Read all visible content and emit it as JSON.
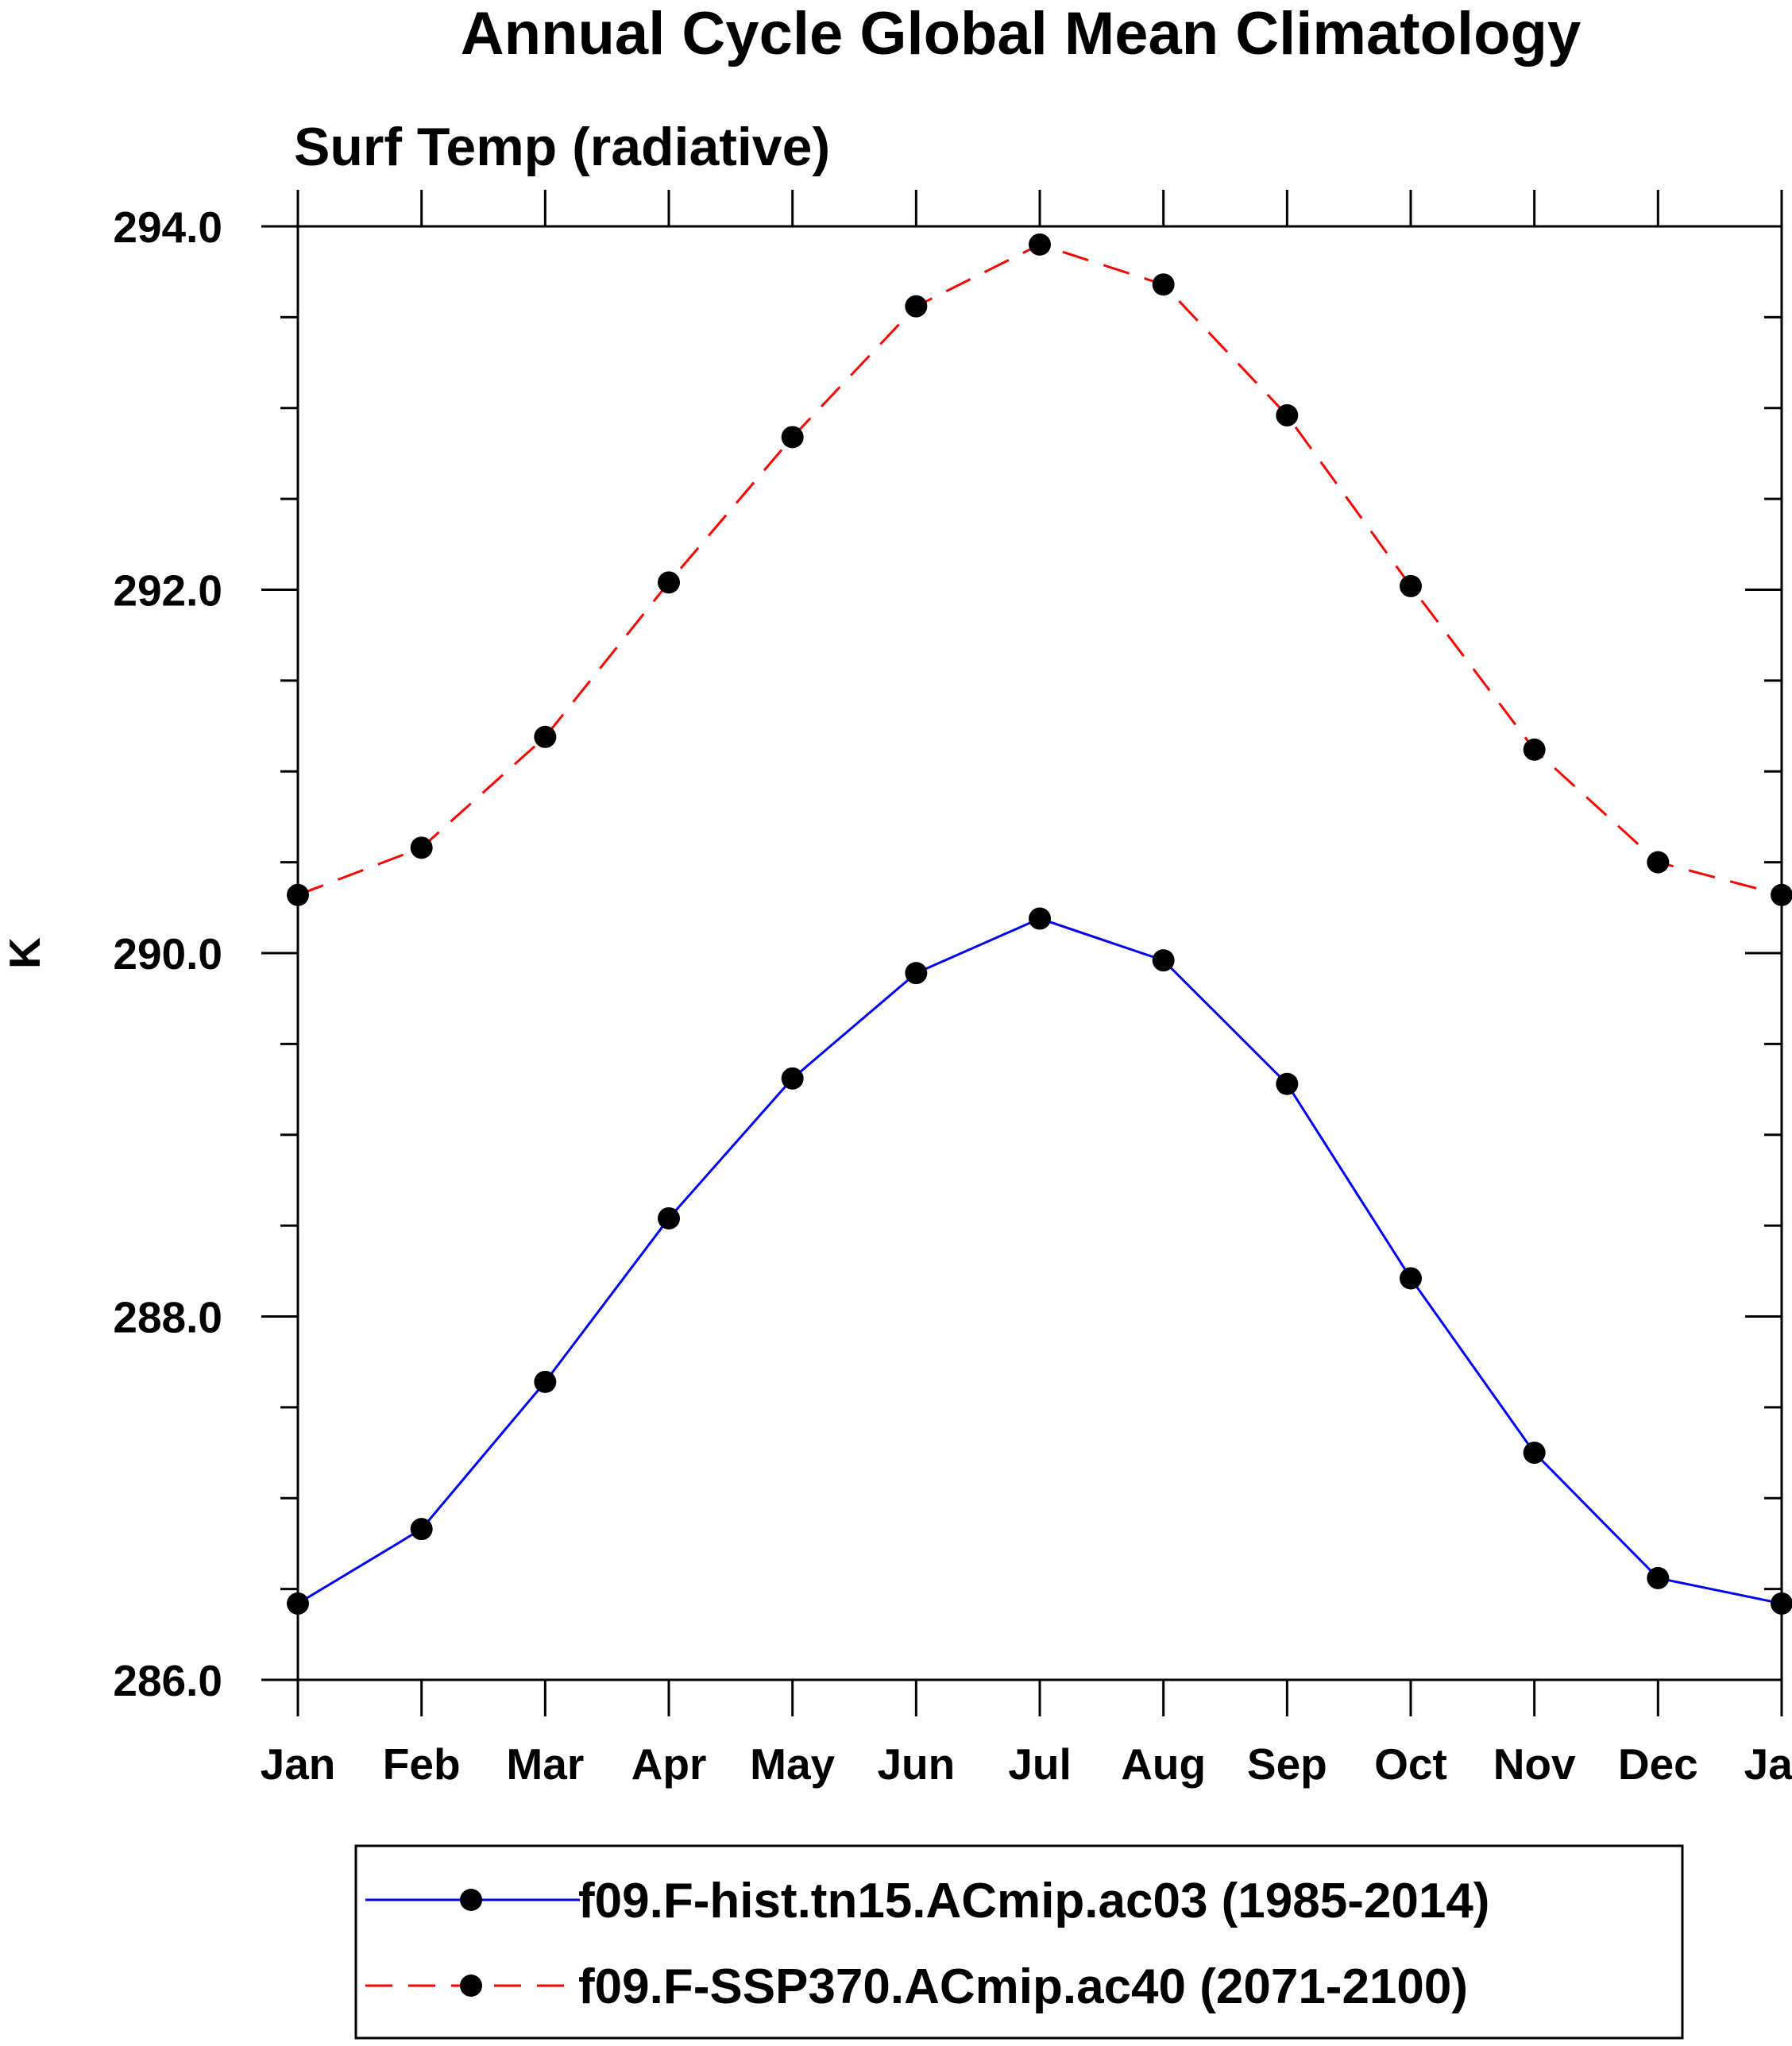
{
  "chart_data": {
    "type": "line",
    "title": "Annual Cycle Global Mean Climatology",
    "subtitle": "Surf Temp (radiative)",
    "ylabel": "K",
    "xlabel": "",
    "categories": [
      "Jan",
      "Feb",
      "Mar",
      "Apr",
      "May",
      "Jun",
      "Jul",
      "Aug",
      "Sep",
      "Oct",
      "Nov",
      "Dec",
      "Jan"
    ],
    "ylim": [
      286.0,
      294.0
    ],
    "yticks": [
      "286.0",
      "288.0",
      "290.0",
      "292.0",
      "294.0"
    ],
    "ytick_values": [
      286.0,
      288.0,
      290.0,
      292.0,
      294.0
    ],
    "grid": false,
    "legend_position": "bottom",
    "series": [
      {
        "name": "f09.F-hist.tn15.ACmip.ac03 (1985-2014)",
        "color": "#0000ff",
        "style": "solid",
        "values": [
          286.42,
          286.83,
          287.64,
          288.54,
          289.31,
          289.89,
          290.19,
          289.96,
          289.28,
          288.21,
          287.25,
          286.56,
          286.42
        ]
      },
      {
        "name": "f09.F-SSP370.ACmip.ac40 (2071-2100)",
        "color": "#ff0000",
        "style": "dashed",
        "values": [
          290.32,
          290.58,
          291.19,
          292.04,
          292.84,
          293.56,
          293.9,
          293.68,
          292.96,
          292.02,
          291.12,
          290.5,
          290.32
        ]
      }
    ]
  }
}
